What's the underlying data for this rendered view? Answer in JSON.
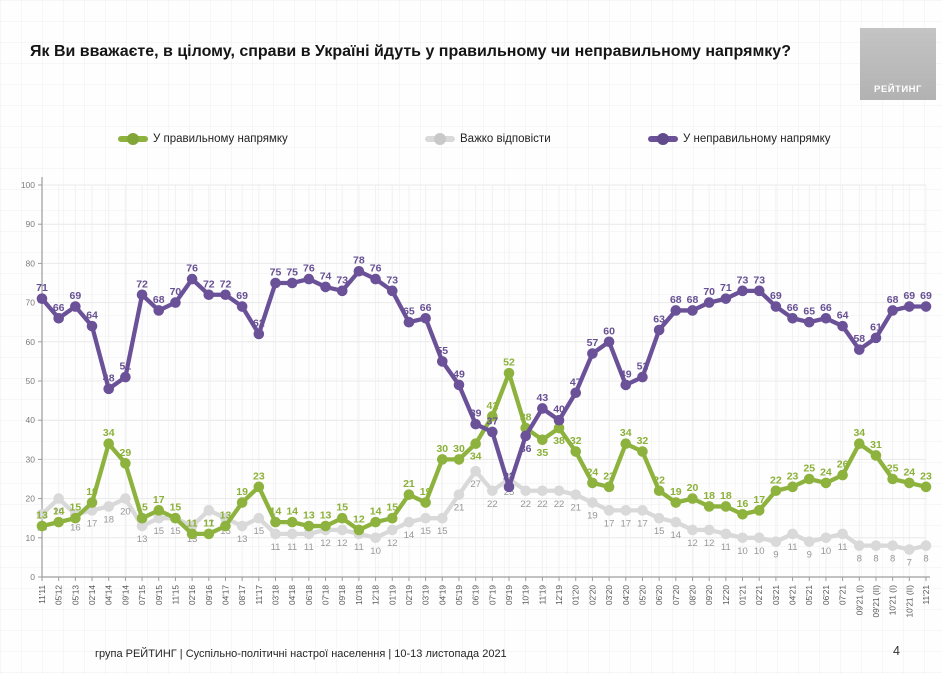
{
  "title": "Як Ви вважаєте, в цілому, справи в Україні йдуть у правильному чи неправильному напрямку?",
  "logo": "РЕЙТИНГ",
  "legend": [
    {
      "label": "У правильному напрямку",
      "color": "#8db33e"
    },
    {
      "label": "Важко відповісти",
      "color": "#d9d9d9"
    },
    {
      "label": "У неправильному напрямку",
      "color": "#6a5198"
    }
  ],
  "footer": {
    "text": "група РЕЙТИНГ | Суспільно-політичні настрої населення  | 10-13 листопада 2021",
    "page": "4"
  },
  "chart_data": {
    "type": "line",
    "title": "Як Ви вважаєте, в цілому, справи в Україні йдуть у правильному чи неправильному напрямку?",
    "xlabel": "",
    "ylabel": "",
    "ylim": [
      0,
      100
    ],
    "yticks": [
      0,
      10,
      20,
      30,
      40,
      50,
      60,
      70,
      80,
      90,
      100
    ],
    "grid": true,
    "legend_position": "top",
    "categories": [
      "11'11",
      "05'12",
      "05'13",
      "02'14",
      "04'14",
      "09'14",
      "07'15",
      "09'15",
      "11'15",
      "02'16",
      "09'16",
      "04'17",
      "08'17",
      "11'17",
      "03'18",
      "04'18",
      "06'18",
      "07'18",
      "09'18",
      "10'18",
      "12'18",
      "01'19",
      "02'19",
      "03'19",
      "04'19",
      "05'19",
      "06'19",
      "07'19",
      "09'19",
      "10'19",
      "11'19",
      "12'19",
      "01'20",
      "02'20",
      "03'20",
      "04'20",
      "05'20",
      "06'20",
      "07'20",
      "08'20",
      "09'20",
      "12'20",
      "01'21",
      "02'21",
      "03'21",
      "04'21",
      "05'21",
      "06'21",
      "07'21",
      "09'21 (I)",
      "09'21 (II)",
      "10'21 (I)",
      "10'21 (II)",
      "11'21"
    ],
    "series": [
      {
        "key": "hard_to_say",
        "name": "Важко відповісти",
        "color": "#d9d9d9",
        "label_color": "#979797",
        "values": [
          16,
          20,
          16,
          17,
          18,
          20,
          13,
          15,
          15,
          13,
          17,
          15,
          13,
          15,
          11,
          11,
          11,
          12,
          12,
          11,
          10,
          12,
          14,
          15,
          15,
          21,
          27,
          22,
          25,
          22,
          22,
          22,
          21,
          19,
          17,
          17,
          17,
          15,
          14,
          12,
          12,
          11,
          10,
          10,
          9,
          11,
          9,
          10,
          11,
          8,
          8,
          8,
          7,
          8
        ]
      },
      {
        "key": "right_direction",
        "name": "У правильному напрямку",
        "color": "#8db33e",
        "label_color": "#8cb139",
        "values": [
          13,
          14,
          15,
          19,
          34,
          29,
          15,
          17,
          15,
          11,
          11,
          13,
          19,
          23,
          14,
          14,
          13,
          13,
          15,
          12,
          14,
          15,
          21,
          19,
          30,
          30,
          34,
          41,
          52,
          38,
          35,
          38,
          32,
          24,
          23,
          34,
          32,
          22,
          19,
          20,
          18,
          18,
          16,
          17,
          22,
          23,
          25,
          24,
          26,
          34,
          31,
          25,
          24,
          23
        ]
      },
      {
        "key": "wrong_direction",
        "name": "У неправильному напрямку",
        "color": "#6a5198",
        "label_color": "#675093",
        "values": [
          71,
          66,
          69,
          64,
          48,
          51,
          72,
          68,
          70,
          76,
          72,
          72,
          69,
          62,
          75,
          75,
          76,
          74,
          73,
          78,
          76,
          73,
          65,
          66,
          55,
          49,
          39,
          37,
          23,
          36,
          43,
          40,
          47,
          57,
          60,
          49,
          51,
          63,
          68,
          68,
          70,
          71,
          73,
          73,
          69,
          66,
          65,
          66,
          64,
          58,
          61,
          68,
          69,
          69
        ]
      }
    ]
  }
}
